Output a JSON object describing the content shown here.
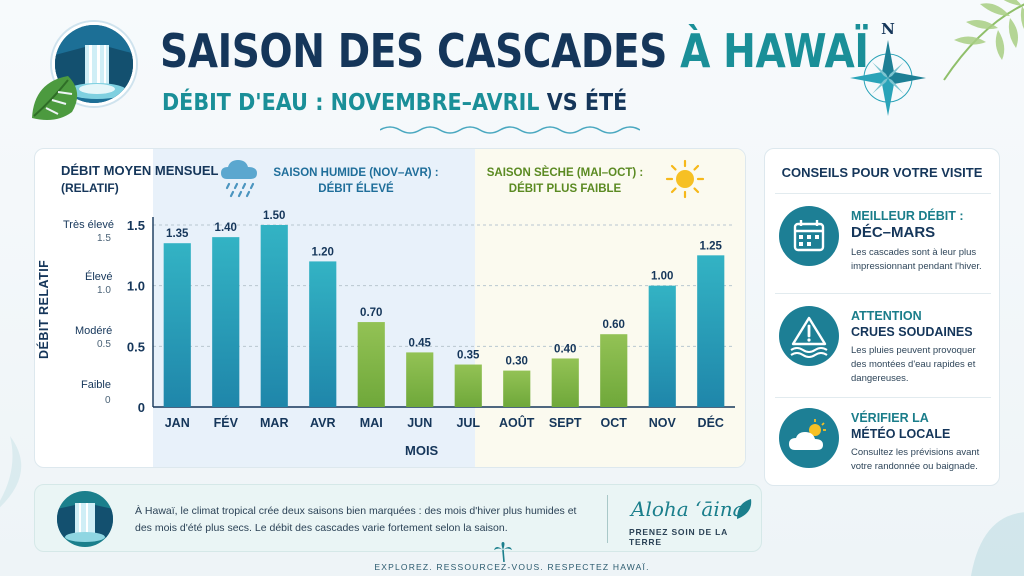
{
  "header": {
    "title_main": "SAISON DES CASCADES",
    "title_accent": "À HAWAÏ",
    "subtitle_main": "DÉBIT D'EAU : NOVEMBRE–AVRIL",
    "subtitle_vs": "VS ÉTÉ",
    "compass_letter": "N"
  },
  "chart_panel": {
    "heading_line1": "DÉBIT MOYEN MENSUEL",
    "heading_line2": "(RELATIF)",
    "wet_season_label": "SAISON HUMIDE (NOV–AVR) : DÉBIT ÉLEVÉ",
    "dry_season_label": "SAISON SÈCHE (MAI–OCT) : DÉBIT PLUS FAIBLE",
    "scale_words": [
      {
        "word": "Très élevé",
        "value": "1.5"
      },
      {
        "word": "Élevé",
        "value": "1.0"
      },
      {
        "word": "Modéré",
        "value": "0.5"
      },
      {
        "word": "Faible",
        "value": "0"
      }
    ]
  },
  "chart_data": {
    "type": "bar",
    "categories": [
      "JAN",
      "FÉV",
      "MAR",
      "AVR",
      "MAI",
      "JUN",
      "JUL",
      "AOÛT",
      "SEPT",
      "OCT",
      "NOV",
      "DÉC"
    ],
    "values": [
      1.35,
      1.4,
      1.5,
      1.2,
      0.7,
      0.45,
      0.35,
      0.3,
      0.4,
      0.6,
      1.0,
      1.25
    ],
    "value_labels": [
      "1.35",
      "1.40",
      "1.50",
      "1.20",
      "0.70",
      "0.45",
      "0.35",
      "0.30",
      "0.40",
      "0.60",
      "1.00",
      "1.25"
    ],
    "season": [
      "wet",
      "wet",
      "wet",
      "wet",
      "dry",
      "dry",
      "dry",
      "dry",
      "dry",
      "dry",
      "wet",
      "wet"
    ],
    "ylabel": "DÉBIT RELATIF",
    "xlabel": "MOIS",
    "ylim": [
      0,
      1.5
    ],
    "yticks": [
      0,
      0.5,
      1.0,
      1.5
    ],
    "ytick_labels": [
      "0",
      "0.5",
      "1.0",
      "1.5"
    ],
    "grid": true,
    "colors": {
      "wet": "#2aa3b8",
      "dry": "#86b84a"
    }
  },
  "tips": {
    "title": "CONSEILS POUR VOTRE VISITE",
    "items": [
      {
        "icon": "calendar-icon",
        "head": "MEILLEUR DÉBIT :",
        "head2": "DÉC–MARS",
        "text": "Les cascades sont à leur plus impressionnant pendant l'hiver."
      },
      {
        "icon": "warning-flood-icon",
        "head": "ATTENTION",
        "head2": "CRUES SOUDAINES",
        "text": "Les pluies peuvent provoquer des montées d'eau rapides et dangereuses."
      },
      {
        "icon": "weather-icon",
        "head": "VÉRIFIER LA",
        "head2": "MÉTÉO LOCALE",
        "text": "Consultez les prévisions avant votre randonnée ou baignade."
      }
    ]
  },
  "banner": {
    "text": "À Hawaï, le climat tropical crée deux saisons bien marquées : des mois d'hiver plus humides et des mois d'été plus secs. Le débit des cascades varie fortement selon la saison.",
    "aloha": "Aloha ʻāina",
    "aloha_sub": "PRENEZ SOIN DE LA TERRE"
  },
  "footer": {
    "text": "EXPLOREZ. RESSOURCEZ-VOUS. RESPECTEZ HAWAÏ."
  }
}
